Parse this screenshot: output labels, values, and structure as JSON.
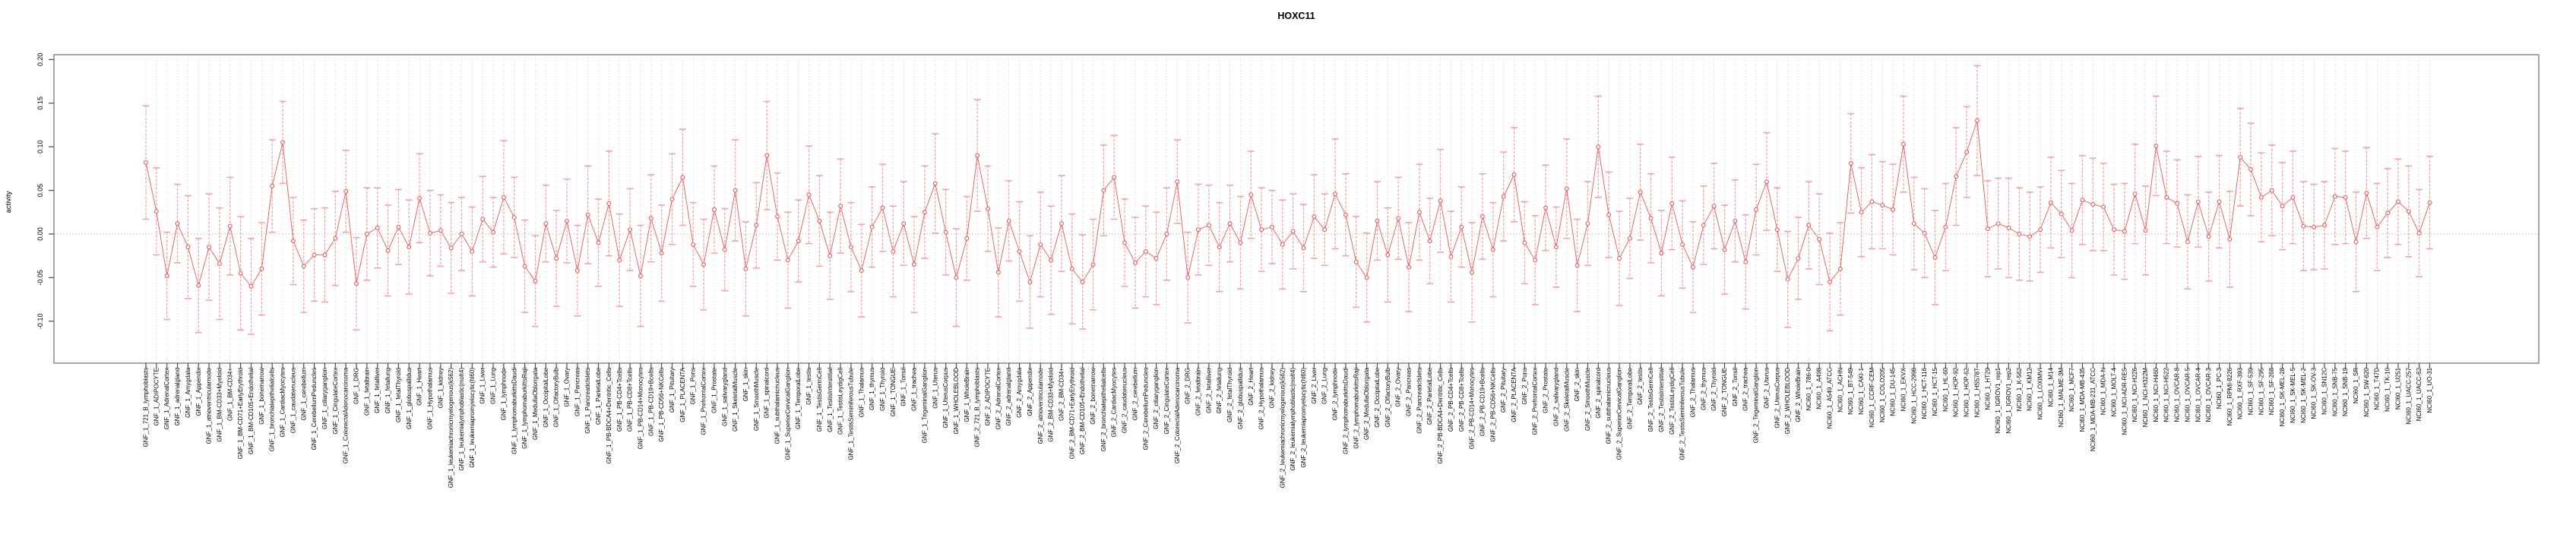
{
  "title": "HOXC11",
  "y_axis": {
    "label": "activity",
    "tick_labels": [
      "-0.10",
      "-0.05",
      "0.00",
      "0.05",
      "0.10",
      "0.15",
      "0.20"
    ],
    "tick_values": [
      -0.1,
      -0.05,
      0.0,
      0.05,
      0.1,
      0.15,
      0.2
    ]
  },
  "colors": {
    "marker_line": "#e4595c",
    "error_bar": "#f2a3a3",
    "grid": "#d9d9d9",
    "zero_line": "#c0c0c0",
    "box": "#8a8a8a",
    "tick": "#4d4d4d",
    "background": "#ffffff"
  },
  "chart_data": {
    "type": "scatter",
    "subtype": "points-with-error-bars",
    "title": "HOXC11",
    "xlabel": "",
    "ylabel": "activity",
    "ylim": [
      -0.148,
      0.206
    ],
    "grid": "vertical dotted line at every category; horizontal dotted line at 0.00",
    "legend_position": "none",
    "categories": [
      "GNF_1_721_B_lymphoblasts",
      "GNF_1_ADIPOCYTE",
      "GNF_1_AdrenalCortex",
      "GNF_1_adrenalgland",
      "GNF_1_Amygdala",
      "GNF_1_Appendix",
      "GNF_1_atrioventricularnode",
      "GNF_1_BM-CD33+Myeloid",
      "GNF_1_BM-CD34+",
      "GNF_1_BM-CD71+EarlyErythroid",
      "GNF_1_BM-CD105+Endothelial",
      "GNF_1_bonemarrow",
      "GNF_1_bronchialepithelialcells",
      "GNF_1_CardiacMyocytes",
      "GNF_1_caudatenucleus",
      "GNF_1_cerebellum",
      "GNF_1_CerebellumPeduncles",
      "GNF_1_ciliaryganglion",
      "GNF_1_CingulateCortex",
      "GNF_1_ColorectalAdenocarcinoma",
      "GNF_1_DRG",
      "GNF_1_fetalbrain",
      "GNF_1_fetalliver",
      "GNF_1_fetallung",
      "GNF_1_fetalThyroid",
      "GNF_1_globuspallidus",
      "GNF_1_Heart",
      "GNF_1_Hypothalamus",
      "GNF_1_kidney",
      "GNF_1_leukemiachronicmyelogenous(k562)",
      "GNF_1_leukemialymphoblastic(molt4)",
      "GNF_1_leukemiapromyelocytic(hl60)",
      "GNF_1_Liver",
      "GNF_1_Lung",
      "GNF_1_lymphnode",
      "GNF_1_lymphomaburkittsDaudi",
      "GNF_1_lymphomaburkittsRaji",
      "GNF_1_MedullaOblongata",
      "GNF_1_OccipitalLobe",
      "GNF_1_OlfactoryBulb",
      "GNF_1_Ovary",
      "GNF_1_Pancreas",
      "GNF_1_PancreaticIslets",
      "GNF_1_ParietalLobe",
      "GNF_1_PB-BDCA4+Dentritic_Cells",
      "GNF_1_PB-CD4+Tcells",
      "GNF_1_PB-CD8+Tcells",
      "GNF_1_PB-CD14+Monocytes",
      "GNF_1_PB-CD19+Bcells",
      "GNF_1_PB-CD56+NKCells",
      "GNF_1_Pituitary",
      "GNF_1_PLACENTA",
      "GNF_1_Pons",
      "GNF_1_PrefrontalCortex",
      "GNF_1_Prostate",
      "GNF_1_salivarygland",
      "GNF_1_SkeletalMuscle",
      "GNF_1_skin",
      "GNF_1_SmoothMuscle",
      "GNF_1_spinalcord",
      "GNF_1_subthalamicnucleus",
      "GNF_1_SuperiorCervicalGanglion",
      "GNF_1_TemporalLobe",
      "GNF_1_testis",
      "GNF_1_TestisGermCell",
      "GNF_1_TestisInterstitial",
      "GNF_1_TestisLeydigCell",
      "GNF_1_TestisSeminiferousTubule",
      "GNF_1_Thalamus",
      "GNF_1_thymus",
      "GNF_1_Thyroid",
      "GNF_1_TONGUE",
      "GNF_1_Tonsil",
      "GNF_1_trachea",
      "GNF_1_TrigeminalGanglion",
      "GNF_1_Uterus",
      "GNF_1_UterusCorpus",
      "GNF_1_WHOLEBLOOD",
      "GNF_1_WholeBrain",
      "GNF_2_721_B_lymphoblasts",
      "GNF_2_ADIPOCYTE",
      "GNF_2_AdrenalCortex",
      "GNF_2_adrenalgland",
      "GNF_2_Amygdala",
      "GNF_2_Appendix",
      "GNF_2_atrioventricularnode",
      "GNF_2_BM-CD33+Myeloid",
      "GNF_2_BM-CD34+",
      "GNF_2_BM-CD71+EarlyErythroid",
      "GNF_2_BM-CD105+Endothelial",
      "GNF_2_bonemarrow",
      "GNF_2_bronchialepithelialcells",
      "GNF_2_CardiacMyocytes",
      "GNF_2_caudatenucleus",
      "GNF_2_cerebellum",
      "GNF_2_CerebellumPeduncles",
      "GNF_2_ciliaryganglion",
      "GNF_2_CingulateCortex",
      "GNF_2_ColorectalAdenocarcinoma",
      "GNF_2_DRG",
      "GNF_2_fetalbrain",
      "GNF_2_fetalliver",
      "GNF_2_fetallung",
      "GNF_2_fetalThyroid",
      "GNF_2_globuspallidus",
      "GNF_2_Heart",
      "GNF_2_Hypothalamus",
      "GNF_2_kidney",
      "GNF_2_leukemiachronicmyelogenous(k562)",
      "GNF_2_leukemialymphoblastic(molt4)",
      "GNF_2_leukemiapromyelocytic(hl60)",
      "GNF_2_Liver",
      "GNF_2_Lung",
      "GNF_2_lymphnode",
      "GNF_2_lymphomaburkittsDaudi",
      "GNF_2_lymphomaburkittsRaji",
      "GNF_2_MedullaOblongata",
      "GNF_2_OccipitalLobe",
      "GNF_2_OlfactoryBulb",
      "GNF_2_Ovary",
      "GNF_2_Pancreas",
      "GNF_2_PancreaticIslets",
      "GNF_2_ParietalLobe",
      "GNF_2_PB-BDCA4+Dentritic_Cells",
      "GNF_2_PB-CD4+Tcells",
      "GNF_2_PB-CD8+Tcells",
      "GNF_2_PB-CD14+Monocytes",
      "GNF_2_PB-CD19+Bcells",
      "GNF_2_PB-CD56+NKCells",
      "GNF_2_Pituitary",
      "GNF_2_PLACENTA",
      "GNF_2_Pons",
      "GNF_2_PrefrontalCortex",
      "GNF_2_Prostate",
      "GNF_2_salivarygland",
      "GNF_2_SkeletalMuscle",
      "GNF_2_skin",
      "GNF_2_SmoothMuscle",
      "GNF_2_spinalcord",
      "GNF_2_subthalamicnucleus",
      "GNF_2_SuperiorCervicalGanglion",
      "GNF_2_TemporalLobe",
      "GNF_2_testis",
      "GNF_2_TestisGermCell",
      "GNF_2_TestisInterstitial",
      "GNF_2_TestisLeydigCell",
      "GNF_2_TestisSeminiferousTubule",
      "GNF_2_Thalamus",
      "GNF_2_thymus",
      "GNF_2_Thyroid",
      "GNF_2_TONGUE",
      "GNF_2_Tonsil",
      "GNF_2_trachea",
      "GNF_2_TrigeminalGanglion",
      "GNF_2_Uterus",
      "GNF_2_UterusCorpus",
      "GNF_2_WHOLEBLOOD",
      "GNF_2_WholeBrain",
      "NCI60_1_786-0",
      "NCI60_1_A498",
      "NCI60_1_A549_ATCC",
      "NCI60_1_ACHN",
      "NCI60_1_BT-549",
      "NCI60_1_CAKI-1",
      "NCI60_1_CCRF-CEM",
      "NCI60_1_COLO205",
      "NCI60_1_DU-145",
      "NCI60_1_EKVX",
      "NCI60_1_HCC-2998",
      "NCI60_1_HCT-116",
      "NCI60_1_HCT-15",
      "NCI60_1_HL-60",
      "NCI60_1_HOP-92",
      "NCI60_1_HOP-62",
      "NCI60_1_HS578T",
      "NCI60_1_HT29",
      "NCI60_1_IGROV1_rep1",
      "NCI60_1_IGROV1_rep2",
      "NCI60_1_K-562",
      "NCI60_1_KM12",
      "NCI60_1_LOXIMVI",
      "NCI60_1_M14",
      "NCI60_1_MALME-3M",
      "NCI60_1_MCF7",
      "NCI60_1_MDA-MB-435",
      "NCI60_1_MDA-MB-231_ATCC",
      "NCI60_1_MDA-N",
      "NCI60_1_MOLT-4",
      "NCI60_1_NCI-ADR-RES",
      "NCI60_1_NCI-H226",
      "NCI60_1_NCI-H322M",
      "NCI60_1_NCI-H460",
      "NCI60_1_NCI-H522",
      "NCI60_1_OVCAR-8",
      "NCI60_1_OVCAR-5",
      "NCI60_1_OVCAR-4",
      "NCI60_1_OVCAR-3",
      "NCI60_1_PC-3",
      "NCI60_1_RPMI-8226",
      "NCI60_1_RXF-393",
      "NCI60_1_SF-539",
      "NCI60_1_SF-295",
      "NCI60_1_SF-268",
      "NCI60_1_SK-MEL-28",
      "NCI60_1_SK-MEL-5",
      "NCI60_1_SK-MEL-2",
      "NCI60_1_SK-OV-3",
      "NCI60_1_SN12C",
      "NCI60_1_SNB-75",
      "NCI60_1_SNB-19",
      "NCI60_1_SR",
      "NCI60_1_SW-620",
      "NCI60_1_T47D",
      "NCI60_1_TK-10",
      "NCI60_1_U251",
      "NCI60_1_UACC-257",
      "NCI60_1_UACC-62",
      "NCI60_1_UO-31"
    ],
    "values": [
      0.082,
      0.026,
      -0.048,
      0.012,
      -0.015,
      -0.059,
      -0.015,
      -0.034,
      0.009,
      -0.045,
      -0.06,
      -0.04,
      0.055,
      0.105,
      -0.008,
      -0.037,
      -0.024,
      -0.024,
      -0.005,
      0.049,
      -0.057,
      0.0,
      0.007,
      -0.019,
      0.008,
      -0.015,
      0.041,
      0.001,
      0.004,
      -0.016,
      0.0,
      -0.02,
      0.017,
      0.002,
      0.042,
      0.019,
      -0.037,
      -0.054,
      0.012,
      -0.028,
      0.015,
      -0.042,
      0.022,
      -0.01,
      0.035,
      -0.03,
      0.005,
      -0.048,
      0.018,
      -0.022,
      0.04,
      0.065,
      -0.012,
      -0.035,
      0.028,
      -0.018,
      0.05,
      -0.04,
      0.01,
      0.09,
      0.02,
      -0.03,
      -0.008,
      0.045,
      0.015,
      -0.025,
      0.032,
      -0.015,
      -0.042,
      0.008,
      0.03,
      -0.02,
      0.012,
      -0.035,
      0.025,
      0.058,
      0.002,
      -0.05,
      -0.005,
      0.09,
      0.029,
      -0.044,
      0.015,
      -0.02,
      -0.055,
      -0.012,
      -0.03,
      0.012,
      -0.04,
      -0.055,
      -0.035,
      0.05,
      0.065,
      -0.01,
      -0.033,
      -0.02,
      -0.028,
      0.0,
      0.06,
      -0.05,
      0.005,
      0.01,
      -0.015,
      0.012,
      -0.01,
      0.045,
      0.005,
      0.008,
      -0.012,
      0.003,
      -0.016,
      0.02,
      0.005,
      0.046,
      0.022,
      -0.032,
      -0.05,
      0.015,
      -0.024,
      0.018,
      -0.038,
      0.025,
      -0.008,
      0.038,
      -0.026,
      0.008,
      -0.044,
      0.02,
      -0.018,
      0.043,
      0.068,
      -0.01,
      -0.03,
      0.03,
      -0.015,
      0.052,
      -0.036,
      0.012,
      0.1,
      0.022,
      -0.028,
      -0.005,
      0.048,
      0.018,
      -0.022,
      0.035,
      -0.012,
      -0.038,
      0.01,
      0.032,
      -0.018,
      0.015,
      -0.032,
      0.028,
      0.06,
      0.005,
      -0.052,
      -0.028,
      0.01,
      -0.006,
      -0.055,
      -0.04,
      0.081,
      0.025,
      0.037,
      0.033,
      0.028,
      0.103,
      0.012,
      0.001,
      -0.027,
      0.008,
      0.066,
      0.094,
      0.13,
      0.006,
      0.012,
      0.007,
      0.0,
      -0.003,
      0.005,
      0.036,
      0.023,
      0.004,
      0.039,
      0.034,
      0.031,
      0.005,
      0.003,
      0.046,
      0.004,
      0.101,
      0.042,
      0.035,
      -0.009,
      0.037,
      -0.003,
      0.037,
      -0.006,
      0.088,
      0.074,
      0.042,
      0.05,
      0.032,
      0.042,
      0.009,
      0.008,
      0.01,
      0.043,
      0.042,
      -0.009,
      0.047,
      0.008,
      0.024,
      0.037,
      0.026,
      0.001,
      0.036
    ],
    "errors": [
      0.065,
      0.05,
      0.05,
      0.045,
      0.059,
      0.054,
      0.061,
      0.064,
      0.056,
      0.065,
      0.055,
      0.053,
      0.053,
      0.047,
      0.05,
      0.053,
      0.053,
      0.054,
      0.054,
      0.047,
      0.053,
      0.053,
      0.046,
      0.052,
      0.043,
      0.054,
      0.051,
      0.049,
      0.041,
      0.052,
      0.042,
      0.051,
      0.049,
      0.04,
      0.065,
      0.046,
      0.053,
      0.052,
      0.044,
      0.055,
      0.048,
      0.052,
      0.056,
      0.05,
      0.06,
      0.053,
      0.047,
      0.058,
      0.05,
      0.055,
      0.052,
      0.055,
      0.048,
      0.052,
      0.05,
      0.047,
      0.058,
      0.054,
      0.049,
      0.062,
      0.05,
      0.055,
      0.047,
      0.056,
      0.052,
      0.05,
      0.054,
      0.051,
      0.053,
      0.046,
      0.05,
      0.052,
      0.048,
      0.055,
      0.053,
      0.057,
      0.049,
      0.056,
      0.048,
      0.064,
      0.049,
      0.051,
      0.046,
      0.057,
      0.053,
      0.06,
      0.062,
      0.055,
      0.063,
      0.054,
      0.052,
      0.052,
      0.048,
      0.05,
      0.052,
      0.052,
      0.053,
      0.053,
      0.048,
      0.052,
      0.052,
      0.046,
      0.051,
      0.044,
      0.053,
      0.05,
      0.048,
      0.042,
      0.051,
      0.043,
      0.05,
      0.048,
      0.041,
      0.063,
      0.047,
      0.052,
      0.051,
      0.045,
      0.054,
      0.047,
      0.051,
      0.055,
      0.049,
      0.059,
      0.052,
      0.046,
      0.057,
      0.049,
      0.054,
      0.051,
      0.054,
      0.047,
      0.051,
      0.049,
      0.046,
      0.057,
      0.053,
      0.048,
      0.058,
      0.049,
      0.054,
      0.046,
      0.055,
      0.051,
      0.049,
      0.053,
      0.05,
      0.052,
      0.045,
      0.049,
      0.051,
      0.047,
      0.054,
      0.052,
      0.056,
      0.048,
      0.055,
      0.047,
      0.05,
      0.052,
      0.056,
      0.053,
      0.057,
      0.051,
      0.054,
      0.05,
      0.052,
      0.055,
      0.053,
      0.051,
      0.054,
      0.05,
      0.056,
      0.052,
      0.063,
      0.055,
      0.052,
      0.057,
      0.053,
      0.051,
      0.049,
      0.052,
      0.05,
      0.054,
      0.051,
      0.053,
      0.05,
      0.052,
      0.055,
      0.057,
      0.051,
      0.057,
      0.053,
      0.05,
      0.054,
      0.052,
      0.051,
      0.053,
      0.055,
      0.056,
      0.053,
      0.051,
      0.052,
      0.05,
      0.053,
      0.051,
      0.049,
      0.05,
      0.055,
      0.053,
      0.057,
      0.052,
      0.05,
      0.051,
      0.049,
      0.052,
      0.05,
      0.053
    ]
  }
}
